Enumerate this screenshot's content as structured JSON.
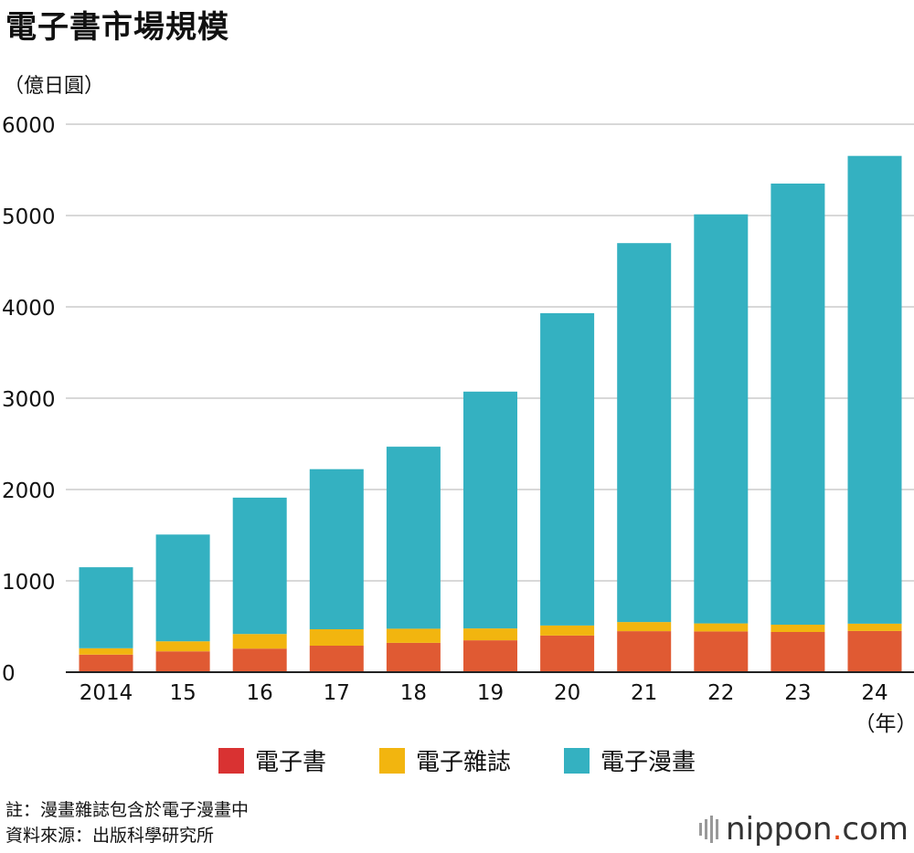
{
  "title": "電子書市場規模",
  "unit_label": "（億日圓）",
  "chart_data": {
    "type": "bar",
    "stacked": true,
    "categories": [
      "2014",
      "15",
      "16",
      "17",
      "18",
      "19",
      "20",
      "21",
      "22",
      "23",
      "24"
    ],
    "x_unit_label": "（年）",
    "ylim": [
      0,
      6000
    ],
    "yticks": [
      0,
      1000,
      2000,
      3000,
      4000,
      5000,
      6000
    ],
    "grid": true,
    "legend_position": "bottom",
    "series": [
      {
        "name": "電子書",
        "color": "#e05a33",
        "values": [
          192,
          228,
          258,
          290,
          321,
          349,
          401,
          449,
          446,
          440,
          451
        ]
      },
      {
        "name": "電子雜誌",
        "color": "#f2b50f",
        "values": [
          70,
          110,
          160,
          180,
          155,
          130,
          110,
          100,
          88,
          80,
          80
        ]
      },
      {
        "name": "電子漫畫",
        "color": "#34b1c1",
        "values": [
          887,
          1169,
          1493,
          1753,
          1993,
          2593,
          3420,
          4149,
          4479,
          4830,
          5122
        ]
      }
    ],
    "legend_swatch_colors": [
      "#d93232",
      "#f2b50f",
      "#34b1c1"
    ]
  },
  "notes": {
    "note": "註：漫畫雜誌包含於電子漫畫中",
    "source": "資料來源：出版科學研究所"
  },
  "brand": {
    "name": "nippon",
    "dot": ".",
    "suffix": "com"
  }
}
